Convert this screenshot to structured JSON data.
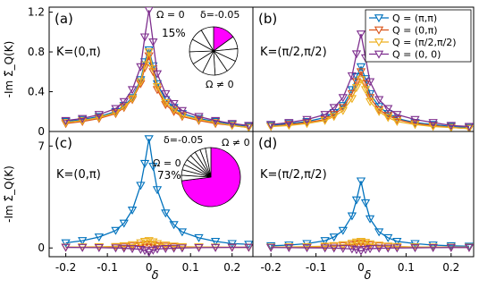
{
  "chart_data": [
    {
      "panel": "(a)",
      "type": "line",
      "annotation": "K=(0,π)",
      "ylabel": "-Im Σ̃_Q(K)",
      "xlim": [
        -0.24,
        0.25
      ],
      "ylim": [
        0,
        1.25
      ],
      "yticks": [
        0,
        0.4,
        0.8,
        1.2
      ],
      "series": [
        {
          "name": "Q = (π,π)",
          "color": "#0072bd",
          "x": [
            -0.2,
            -0.16,
            -0.12,
            -0.08,
            -0.06,
            -0.04,
            -0.02,
            -0.01,
            0,
            0.01,
            0.02,
            0.04,
            0.06,
            0.08,
            0.12,
            0.16,
            0.2,
            0.24
          ],
          "y": [
            0.1,
            0.12,
            0.15,
            0.2,
            0.26,
            0.34,
            0.52,
            0.7,
            0.82,
            0.66,
            0.48,
            0.32,
            0.24,
            0.18,
            0.13,
            0.1,
            0.07,
            0.05
          ]
        },
        {
          "name": "Q = (0,π)",
          "color": "#d95319",
          "x": [
            -0.2,
            -0.16,
            -0.12,
            -0.08,
            -0.06,
            -0.04,
            -0.02,
            -0.01,
            0,
            0.01,
            0.02,
            0.04,
            0.06,
            0.08,
            0.12,
            0.16,
            0.2,
            0.24
          ],
          "y": [
            0.08,
            0.1,
            0.13,
            0.18,
            0.24,
            0.32,
            0.48,
            0.64,
            0.76,
            0.6,
            0.42,
            0.27,
            0.2,
            0.15,
            0.11,
            0.08,
            0.06,
            0.04
          ]
        },
        {
          "name": "Q = (π/2,π/2)",
          "color": "#edb120",
          "x": [
            -0.2,
            -0.16,
            -0.12,
            -0.08,
            -0.06,
            -0.04,
            -0.02,
            -0.01,
            0,
            0.01,
            0.02,
            0.04,
            0.06,
            0.08,
            0.12,
            0.16,
            0.2,
            0.24
          ],
          "y": [
            0.09,
            0.11,
            0.14,
            0.19,
            0.25,
            0.33,
            0.5,
            0.67,
            0.8,
            0.63,
            0.45,
            0.29,
            0.22,
            0.16,
            0.12,
            0.09,
            0.06,
            0.04
          ]
        },
        {
          "name": "Q = (0, 0)",
          "color": "#7e2f8e",
          "x": [
            -0.2,
            -0.16,
            -0.12,
            -0.08,
            -0.06,
            -0.04,
            -0.02,
            -0.01,
            0,
            0.01,
            0.02,
            0.04,
            0.06,
            0.08,
            0.12,
            0.16,
            0.2,
            0.24
          ],
          "y": [
            0.11,
            0.13,
            0.17,
            0.23,
            0.3,
            0.42,
            0.65,
            0.95,
            1.22,
            0.9,
            0.58,
            0.38,
            0.28,
            0.21,
            0.15,
            0.11,
            0.08,
            0.06
          ]
        }
      ],
      "inset_pie": {
        "labels": [
          "Ω = 0",
          "δ=-0.05",
          "15%",
          "Ω ≠ 0"
        ],
        "highlight_fraction": 0.15,
        "highlight_color": "#ff00ff",
        "other_slices": 10
      }
    },
    {
      "panel": "(b)",
      "type": "line",
      "annotation": "K=(π/2,π/2)",
      "xlim": [
        -0.24,
        0.25
      ],
      "ylim": [
        0,
        1.25
      ],
      "series": [
        {
          "name": "Q = (π,π)",
          "color": "#0072bd",
          "x": [
            -0.2,
            -0.16,
            -0.12,
            -0.08,
            -0.06,
            -0.04,
            -0.02,
            -0.01,
            0,
            0.01,
            0.02,
            0.04,
            0.06,
            0.08,
            0.12,
            0.16,
            0.2,
            0.24
          ],
          "y": [
            0.06,
            0.08,
            0.1,
            0.14,
            0.19,
            0.26,
            0.42,
            0.55,
            0.65,
            0.53,
            0.38,
            0.25,
            0.18,
            0.13,
            0.09,
            0.07,
            0.05,
            0.04
          ]
        },
        {
          "name": "Q = (0,π)",
          "color": "#d95319",
          "x": [
            -0.2,
            -0.16,
            -0.12,
            -0.08,
            -0.06,
            -0.04,
            -0.02,
            -0.01,
            0,
            0.01,
            0.02,
            0.04,
            0.06,
            0.08,
            0.12,
            0.16,
            0.2,
            0.24
          ],
          "y": [
            0.05,
            0.07,
            0.09,
            0.12,
            0.17,
            0.24,
            0.38,
            0.5,
            0.6,
            0.48,
            0.34,
            0.22,
            0.16,
            0.12,
            0.08,
            0.06,
            0.04,
            0.03
          ]
        },
        {
          "name": "Q = (π/2,π/2)",
          "color": "#edb120",
          "x": [
            -0.2,
            -0.16,
            -0.12,
            -0.08,
            -0.06,
            -0.04,
            -0.02,
            -0.01,
            0,
            0.01,
            0.02,
            0.04,
            0.06,
            0.08,
            0.12,
            0.16,
            0.2,
            0.24
          ],
          "y": [
            0.05,
            0.06,
            0.08,
            0.11,
            0.15,
            0.21,
            0.33,
            0.44,
            0.52,
            0.42,
            0.3,
            0.2,
            0.14,
            0.1,
            0.07,
            0.05,
            0.04,
            0.03
          ]
        },
        {
          "name": "Q = (0, 0)",
          "color": "#7e2f8e",
          "x": [
            -0.2,
            -0.16,
            -0.12,
            -0.08,
            -0.06,
            -0.04,
            -0.02,
            -0.01,
            0,
            0.01,
            0.02,
            0.04,
            0.06,
            0.08,
            0.12,
            0.16,
            0.2,
            0.24
          ],
          "y": [
            0.07,
            0.09,
            0.12,
            0.17,
            0.24,
            0.34,
            0.56,
            0.78,
            0.98,
            0.74,
            0.5,
            0.32,
            0.23,
            0.17,
            0.12,
            0.09,
            0.06,
            0.05
          ]
        }
      ]
    },
    {
      "panel": "(c)",
      "type": "line",
      "annotation": "K=(0,π)",
      "ylabel": "-Im Σ̃_Q(K)",
      "xlabel": "δ",
      "xlim": [
        -0.24,
        0.25
      ],
      "ylim": [
        -0.6,
        8
      ],
      "yticks": [
        0,
        7
      ],
      "xticks": [
        -0.2,
        -0.1,
        0,
        0.1,
        0.2
      ],
      "series": [
        {
          "name": "Q = (π,π)",
          "color": "#0072bd",
          "x": [
            -0.2,
            -0.16,
            -0.12,
            -0.08,
            -0.06,
            -0.04,
            -0.02,
            -0.01,
            0,
            0.01,
            0.02,
            0.04,
            0.06,
            0.08,
            0.12,
            0.16,
            0.2,
            0.24
          ],
          "y": [
            0.35,
            0.5,
            0.75,
            1.2,
            1.7,
            2.6,
            4.3,
            5.8,
            7.5,
            5.6,
            4.0,
            2.4,
            1.6,
            1.1,
            0.7,
            0.45,
            0.3,
            0.25
          ]
        },
        {
          "name": "Q = (0,π)",
          "color": "#d95319",
          "x": [
            -0.2,
            -0.16,
            -0.12,
            -0.08,
            -0.06,
            -0.04,
            -0.02,
            -0.01,
            0,
            0.01,
            0.02,
            0.04,
            0.06,
            0.08,
            0.12,
            0.16,
            0.2,
            0.24
          ],
          "y": [
            0.05,
            0.05,
            0.06,
            0.08,
            0.1,
            0.13,
            0.18,
            0.22,
            0.25,
            0.2,
            0.16,
            0.12,
            0.09,
            0.07,
            0.06,
            0.05,
            0.04,
            0.04
          ]
        },
        {
          "name": "Q = (π/2,π/2)",
          "color": "#edb120",
          "x": [
            -0.2,
            -0.16,
            -0.12,
            -0.08,
            -0.06,
            -0.04,
            -0.02,
            -0.01,
            0,
            0.01,
            0.02,
            0.04,
            0.06,
            0.08,
            0.12,
            0.16,
            0.2,
            0.24
          ],
          "y": [
            0.06,
            0.07,
            0.08,
            0.1,
            0.15,
            0.22,
            0.35,
            0.45,
            0.5,
            0.42,
            0.3,
            0.2,
            0.13,
            0.09,
            0.07,
            0.06,
            0.05,
            0.05
          ]
        },
        {
          "name": "Q = (0, 0)",
          "color": "#7e2f8e",
          "x": [
            -0.2,
            -0.16,
            -0.12,
            -0.08,
            -0.06,
            -0.04,
            -0.02,
            -0.01,
            0,
            0.01,
            0.02,
            0.04,
            0.06,
            0.08,
            0.12,
            0.16,
            0.2,
            0.24
          ],
          "y": [
            0.04,
            0.03,
            0.02,
            0.0,
            -0.02,
            -0.05,
            -0.1,
            -0.18,
            -0.3,
            -0.16,
            -0.08,
            -0.04,
            -0.02,
            0.0,
            0.02,
            0.03,
            0.04,
            0.04
          ]
        }
      ],
      "inset_pie": {
        "labels": [
          "δ=-0.05",
          "Ω ≠ 0",
          "Ω = 0",
          "73%"
        ],
        "highlight_fraction": 0.73,
        "highlight_color": "#ff00ff",
        "other_slices": 9
      }
    },
    {
      "panel": "(d)",
      "type": "line",
      "annotation": "K=(π/2,π/2)",
      "xlabel": "δ",
      "xlim": [
        -0.24,
        0.25
      ],
      "ylim": [
        -0.6,
        8
      ],
      "xticks": [
        -0.2,
        -0.1,
        0,
        0.1,
        0.2
      ],
      "series": [
        {
          "name": "Q = (π,π)",
          "color": "#0072bd",
          "x": [
            -0.2,
            -0.16,
            -0.12,
            -0.08,
            -0.06,
            -0.04,
            -0.02,
            -0.01,
            0,
            0.01,
            0.02,
            0.04,
            0.06,
            0.08,
            0.12,
            0.16,
            0.2,
            0.24
          ],
          "y": [
            0.15,
            0.2,
            0.3,
            0.5,
            0.75,
            1.2,
            2.2,
            3.3,
            4.6,
            3.1,
            2.0,
            1.1,
            0.7,
            0.45,
            0.3,
            0.2,
            0.15,
            0.12
          ]
        },
        {
          "name": "Q = (0,π)",
          "color": "#d95319",
          "x": [
            -0.2,
            -0.16,
            -0.12,
            -0.08,
            -0.06,
            -0.04,
            -0.02,
            -0.01,
            0,
            0.01,
            0.02,
            0.04,
            0.06,
            0.08,
            0.12,
            0.16,
            0.2,
            0.24
          ],
          "y": [
            0.05,
            0.06,
            0.07,
            0.09,
            0.12,
            0.16,
            0.22,
            0.28,
            0.32,
            0.26,
            0.2,
            0.14,
            0.1,
            0.08,
            0.06,
            0.05,
            0.05,
            0.04
          ]
        },
        {
          "name": "Q = (π/2,π/2)",
          "color": "#edb120",
          "x": [
            -0.2,
            -0.16,
            -0.12,
            -0.08,
            -0.06,
            -0.04,
            -0.02,
            -0.01,
            0,
            0.01,
            0.02,
            0.04,
            0.06,
            0.08,
            0.12,
            0.16,
            0.2,
            0.24
          ],
          "y": [
            0.06,
            0.07,
            0.09,
            0.12,
            0.16,
            0.22,
            0.32,
            0.4,
            0.45,
            0.38,
            0.28,
            0.19,
            0.13,
            0.1,
            0.07,
            0.06,
            0.05,
            0.05
          ]
        },
        {
          "name": "Q = (0, 0)",
          "color": "#7e2f8e",
          "x": [
            -0.2,
            -0.16,
            -0.12,
            -0.08,
            -0.06,
            -0.04,
            -0.02,
            -0.01,
            0,
            0.01,
            0.02,
            0.04,
            0.06,
            0.08,
            0.12,
            0.16,
            0.2,
            0.24
          ],
          "y": [
            0.03,
            0.02,
            0.01,
            0.0,
            -0.01,
            -0.03,
            -0.07,
            -0.12,
            -0.2,
            -0.1,
            -0.05,
            -0.02,
            -0.01,
            0.0,
            0.01,
            0.02,
            0.03,
            0.03
          ]
        }
      ]
    }
  ]
}
